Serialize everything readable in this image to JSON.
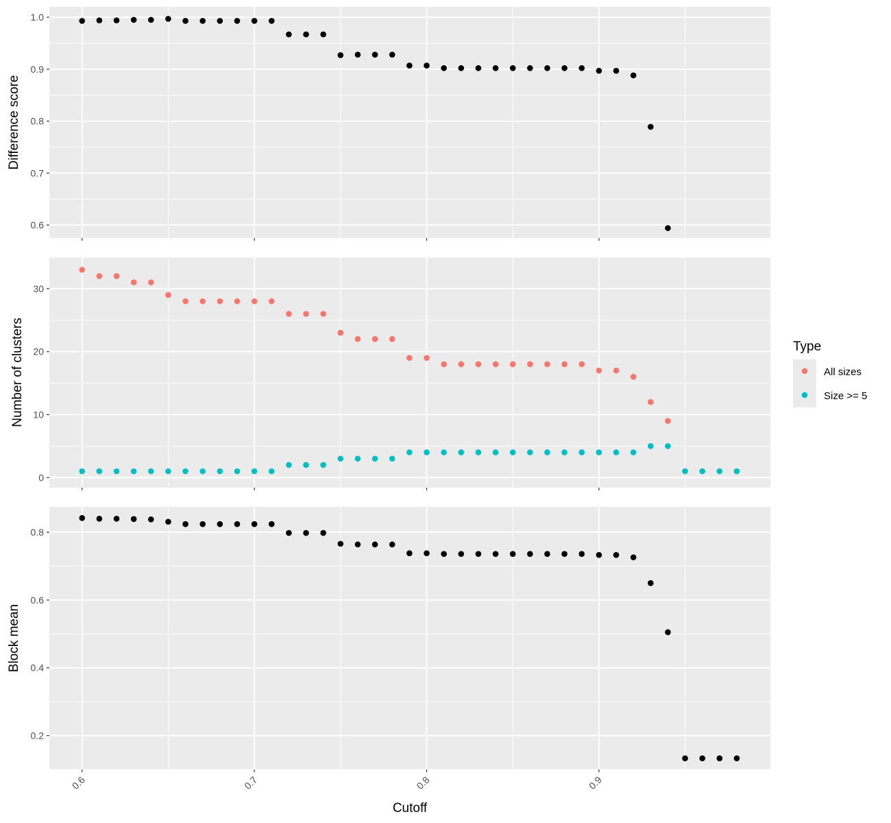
{
  "chart_data": {
    "type": "scatter",
    "xlabel": "Cutoff",
    "x_ticks": [
      0.6,
      0.7,
      0.8,
      0.9
    ],
    "xlim": [
      0.581,
      0.9995
    ],
    "x_tick_labels_rotated": true,
    "grid": true,
    "legend": {
      "title": "Type",
      "placement": "right",
      "entries": [
        {
          "name": "All sizes",
          "color": "#F8766D"
        },
        {
          "name": "Size >= 5",
          "color": "#00BFC4"
        }
      ]
    },
    "panels": [
      {
        "ylabel": "Difference score",
        "ylim": [
          0.575,
          1.02
        ],
        "y_ticks": [
          0.6,
          0.7,
          0.8,
          0.9,
          1.0
        ],
        "series": [
          {
            "color": "#000000",
            "points": [
              [
                0.6,
                0.993
              ],
              [
                0.61,
                0.994
              ],
              [
                0.62,
                0.994
              ],
              [
                0.63,
                0.995
              ],
              [
                0.64,
                0.995
              ],
              [
                0.65,
                0.997
              ],
              [
                0.66,
                0.993
              ],
              [
                0.67,
                0.993
              ],
              [
                0.68,
                0.993
              ],
              [
                0.69,
                0.993
              ],
              [
                0.7,
                0.993
              ],
              [
                0.71,
                0.993
              ],
              [
                0.72,
                0.967
              ],
              [
                0.73,
                0.967
              ],
              [
                0.74,
                0.967
              ],
              [
                0.75,
                0.927
              ],
              [
                0.76,
                0.928
              ],
              [
                0.77,
                0.928
              ],
              [
                0.78,
                0.928
              ],
              [
                0.79,
                0.907
              ],
              [
                0.8,
                0.907
              ],
              [
                0.81,
                0.902
              ],
              [
                0.82,
                0.902
              ],
              [
                0.83,
                0.902
              ],
              [
                0.84,
                0.902
              ],
              [
                0.85,
                0.902
              ],
              [
                0.86,
                0.902
              ],
              [
                0.87,
                0.902
              ],
              [
                0.88,
                0.902
              ],
              [
                0.89,
                0.902
              ],
              [
                0.9,
                0.897
              ],
              [
                0.91,
                0.897
              ],
              [
                0.92,
                0.888
              ],
              [
                0.93,
                0.789
              ],
              [
                0.94,
                0.594
              ]
            ]
          }
        ]
      },
      {
        "ylabel": "Number of clusters",
        "ylim": [
          -1.6,
          35
        ],
        "y_ticks": [
          0,
          10,
          20,
          30
        ],
        "series": [
          {
            "name": "All sizes",
            "color": "#F8766D",
            "points": [
              [
                0.6,
                33
              ],
              [
                0.61,
                32
              ],
              [
                0.62,
                32
              ],
              [
                0.63,
                31
              ],
              [
                0.64,
                31
              ],
              [
                0.65,
                29
              ],
              [
                0.66,
                28
              ],
              [
                0.67,
                28
              ],
              [
                0.68,
                28
              ],
              [
                0.69,
                28
              ],
              [
                0.7,
                28
              ],
              [
                0.71,
                28
              ],
              [
                0.72,
                26
              ],
              [
                0.73,
                26
              ],
              [
                0.74,
                26
              ],
              [
                0.75,
                23
              ],
              [
                0.76,
                22
              ],
              [
                0.77,
                22
              ],
              [
                0.78,
                22
              ],
              [
                0.79,
                19
              ],
              [
                0.8,
                19
              ],
              [
                0.81,
                18
              ],
              [
                0.82,
                18
              ],
              [
                0.83,
                18
              ],
              [
                0.84,
                18
              ],
              [
                0.85,
                18
              ],
              [
                0.86,
                18
              ],
              [
                0.87,
                18
              ],
              [
                0.88,
                18
              ],
              [
                0.89,
                18
              ],
              [
                0.9,
                17
              ],
              [
                0.91,
                17
              ],
              [
                0.92,
                16
              ],
              [
                0.93,
                12
              ],
              [
                0.94,
                9
              ],
              [
                0.95,
                1
              ],
              [
                0.96,
                1
              ],
              [
                0.97,
                1
              ],
              [
                0.98,
                1
              ]
            ]
          },
          {
            "name": "Size >= 5",
            "color": "#00BFC4",
            "points": [
              [
                0.6,
                1
              ],
              [
                0.61,
                1
              ],
              [
                0.62,
                1
              ],
              [
                0.63,
                1
              ],
              [
                0.64,
                1
              ],
              [
                0.65,
                1
              ],
              [
                0.66,
                1
              ],
              [
                0.67,
                1
              ],
              [
                0.68,
                1
              ],
              [
                0.69,
                1
              ],
              [
                0.7,
                1
              ],
              [
                0.71,
                1
              ],
              [
                0.72,
                2
              ],
              [
                0.73,
                2
              ],
              [
                0.74,
                2
              ],
              [
                0.75,
                3
              ],
              [
                0.76,
                3
              ],
              [
                0.77,
                3
              ],
              [
                0.78,
                3
              ],
              [
                0.79,
                4
              ],
              [
                0.8,
                4
              ],
              [
                0.81,
                4
              ],
              [
                0.82,
                4
              ],
              [
                0.83,
                4
              ],
              [
                0.84,
                4
              ],
              [
                0.85,
                4
              ],
              [
                0.86,
                4
              ],
              [
                0.87,
                4
              ],
              [
                0.88,
                4
              ],
              [
                0.89,
                4
              ],
              [
                0.9,
                4
              ],
              [
                0.91,
                4
              ],
              [
                0.92,
                4
              ],
              [
                0.93,
                5
              ],
              [
                0.94,
                5
              ],
              [
                0.95,
                1
              ],
              [
                0.96,
                1
              ],
              [
                0.97,
                1
              ],
              [
                0.98,
                1
              ]
            ]
          }
        ]
      },
      {
        "ylabel": "Block mean",
        "ylim": [
          0.1,
          0.875
        ],
        "y_ticks": [
          0.2,
          0.4,
          0.6,
          0.8
        ],
        "series": [
          {
            "color": "#000000",
            "points": [
              [
                0.6,
                0.842
              ],
              [
                0.61,
                0.84
              ],
              [
                0.62,
                0.84
              ],
              [
                0.63,
                0.839
              ],
              [
                0.64,
                0.838
              ],
              [
                0.65,
                0.831
              ],
              [
                0.66,
                0.824
              ],
              [
                0.67,
                0.824
              ],
              [
                0.68,
                0.824
              ],
              [
                0.69,
                0.824
              ],
              [
                0.7,
                0.824
              ],
              [
                0.71,
                0.824
              ],
              [
                0.72,
                0.798
              ],
              [
                0.73,
                0.798
              ],
              [
                0.74,
                0.798
              ],
              [
                0.75,
                0.766
              ],
              [
                0.76,
                0.764
              ],
              [
                0.77,
                0.764
              ],
              [
                0.78,
                0.764
              ],
              [
                0.79,
                0.738
              ],
              [
                0.8,
                0.738
              ],
              [
                0.81,
                0.736
              ],
              [
                0.82,
                0.736
              ],
              [
                0.83,
                0.736
              ],
              [
                0.84,
                0.736
              ],
              [
                0.85,
                0.736
              ],
              [
                0.86,
                0.736
              ],
              [
                0.87,
                0.736
              ],
              [
                0.88,
                0.736
              ],
              [
                0.89,
                0.736
              ],
              [
                0.9,
                0.733
              ],
              [
                0.91,
                0.733
              ],
              [
                0.92,
                0.726
              ],
              [
                0.93,
                0.65
              ],
              [
                0.94,
                0.505
              ],
              [
                0.95,
                0.133
              ],
              [
                0.96,
                0.133
              ],
              [
                0.97,
                0.133
              ],
              [
                0.98,
                0.133
              ]
            ]
          }
        ]
      }
    ]
  }
}
